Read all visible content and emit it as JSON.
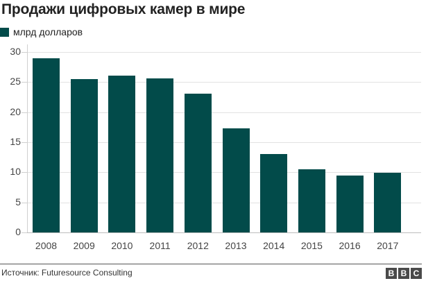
{
  "title": "Продажи цифровых камер в мире",
  "legend": {
    "label": "млрд долларов",
    "color": "#024b4a"
  },
  "footer": {
    "source": "Источник: Futuresource Consulting",
    "logo": [
      "B",
      "B",
      "C"
    ]
  },
  "chart_data": {
    "type": "bar",
    "title": "Продажи цифровых камер в мире",
    "xlabel": "",
    "ylabel": "млрд долларов",
    "categories": [
      "2008",
      "2009",
      "2010",
      "2011",
      "2012",
      "2013",
      "2014",
      "2015",
      "2016",
      "2017"
    ],
    "series": [
      {
        "name": "млрд долларов",
        "values": [
          29.0,
          25.5,
          26.1,
          25.6,
          23.1,
          17.3,
          13.0,
          10.5,
          9.5,
          9.9
        ],
        "color": "#024b4a"
      }
    ],
    "yticks": [
      0,
      5,
      10,
      15,
      20,
      25,
      30
    ],
    "ylim": [
      0,
      30
    ],
    "grid": true,
    "legend_position": "top-left"
  }
}
